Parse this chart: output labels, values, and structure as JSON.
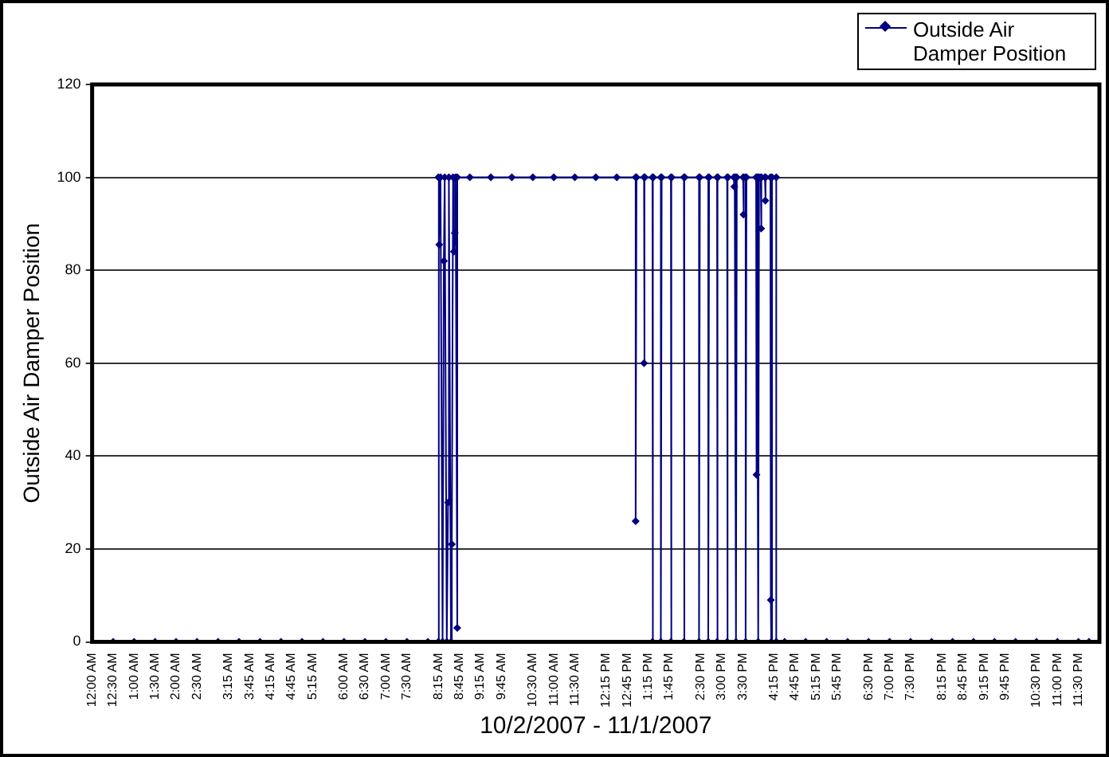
{
  "chart_data": {
    "type": "line",
    "xlabel": "10/2/2007 - 11/1/2007",
    "ylabel": "Outside Air Damper Position",
    "xlim": [
      0,
      24
    ],
    "ylim": [
      0,
      120
    ],
    "yticks": [
      0,
      20,
      40,
      60,
      80,
      100,
      120
    ],
    "xticks": [
      {
        "value": 0,
        "label": "12:00 AM"
      },
      {
        "value": 0.5,
        "label": "12:30 AM"
      },
      {
        "value": 1,
        "label": "1:00 AM"
      },
      {
        "value": 1.5,
        "label": "1:30 AM"
      },
      {
        "value": 2,
        "label": "2:00 AM"
      },
      {
        "value": 2.5,
        "label": "2:30 AM"
      },
      {
        "value": 3.25,
        "label": "3:15 AM"
      },
      {
        "value": 3.75,
        "label": "3:45 AM"
      },
      {
        "value": 4.25,
        "label": "4:15 AM"
      },
      {
        "value": 4.75,
        "label": "4:45 AM"
      },
      {
        "value": 5.25,
        "label": "5:15 AM"
      },
      {
        "value": 6,
        "label": "6:00 AM"
      },
      {
        "value": 6.5,
        "label": "6:30 AM"
      },
      {
        "value": 7,
        "label": "7:00 AM"
      },
      {
        "value": 7.5,
        "label": "7:30 AM"
      },
      {
        "value": 8.25,
        "label": "8:15 AM"
      },
      {
        "value": 8.75,
        "label": "8:45 AM"
      },
      {
        "value": 9.25,
        "label": "9:15 AM"
      },
      {
        "value": 9.75,
        "label": "9:45 AM"
      },
      {
        "value": 10.5,
        "label": "10:30 AM"
      },
      {
        "value": 11,
        "label": "11:00 AM"
      },
      {
        "value": 11.5,
        "label": "11:30 AM"
      },
      {
        "value": 12.25,
        "label": "12:15 PM"
      },
      {
        "value": 12.75,
        "label": "12:45 PM"
      },
      {
        "value": 13.25,
        "label": "1:15 PM"
      },
      {
        "value": 13.75,
        "label": "1:45 PM"
      },
      {
        "value": 14.5,
        "label": "2:30 PM"
      },
      {
        "value": 15,
        "label": "3:00 PM"
      },
      {
        "value": 15.5,
        "label": "3:30 PM"
      },
      {
        "value": 16.25,
        "label": "4:15 PM"
      },
      {
        "value": 16.75,
        "label": "4:45 PM"
      },
      {
        "value": 17.25,
        "label": "5:15 PM"
      },
      {
        "value": 17.75,
        "label": "5:45 PM"
      },
      {
        "value": 18.5,
        "label": "6:30 PM"
      },
      {
        "value": 19,
        "label": "7:00 PM"
      },
      {
        "value": 19.5,
        "label": "7:30 PM"
      },
      {
        "value": 20.25,
        "label": "8:15 PM"
      },
      {
        "value": 20.75,
        "label": "8:45 PM"
      },
      {
        "value": 21.25,
        "label": "9:15 PM"
      },
      {
        "value": 21.75,
        "label": "9:45 PM"
      },
      {
        "value": 22.5,
        "label": "10:30 PM"
      },
      {
        "value": 23,
        "label": "11:00 PM"
      },
      {
        "value": 23.5,
        "label": "11:30 PM"
      }
    ],
    "grid": "y",
    "legend": "top right",
    "marker": "diamond",
    "line_style": "solid",
    "series": [
      {
        "name": "Outside Air Damper Position",
        "color": "#000080",
        "x": [
          0,
          0.5,
          1,
          1.5,
          2,
          2.5,
          3,
          3.5,
          4,
          4.5,
          5,
          5.5,
          6,
          6.5,
          7,
          7.5,
          8,
          8.25,
          8.25,
          8.27,
          8.3,
          8.35,
          8.38,
          8.4,
          8.45,
          8.48,
          8.5,
          8.55,
          8.57,
          8.6,
          8.62,
          8.64,
          8.66,
          8.7,
          8.7,
          9,
          9.5,
          10,
          10.5,
          11,
          11.5,
          12,
          12.5,
          12.95,
          12.95,
          12.97,
          13.15,
          13.15,
          13.17,
          13.35,
          13.35,
          13.37,
          13.55,
          13.55,
          13.57,
          13.79,
          13.79,
          13.81,
          14.1,
          14.1,
          14.12,
          14.46,
          14.46,
          14.48,
          14.68,
          14.68,
          14.7,
          14.89,
          14.89,
          14.91,
          15.13,
          15.13,
          15.15,
          15.29,
          15.3,
          15.31,
          15.34,
          15.34,
          15.36,
          15.51,
          15.52,
          15.53,
          15.57,
          15.57,
          15.59,
          15.82,
          15.83,
          15.84,
          15.87,
          15.87,
          15.89,
          15.93,
          15.94,
          15.95,
          16.03,
          16.04,
          16.05,
          16.16,
          16.17,
          16.18,
          16.2,
          16.3,
          16.3,
          16.5,
          17,
          17.5,
          18,
          18.5,
          19,
          19.5,
          20,
          20.5,
          21,
          21.5,
          22,
          22.5,
          23,
          23.5,
          23.75
        ],
        "values": [
          0,
          0,
          0,
          0,
          0,
          0,
          0,
          0,
          0,
          0,
          0,
          0,
          0,
          0,
          0,
          0,
          0,
          0,
          100,
          85.5,
          100,
          0,
          82,
          100,
          0,
          30,
          100,
          0,
          21,
          100,
          84,
          88,
          100,
          3,
          100,
          100,
          100,
          100,
          100,
          100,
          100,
          100,
          100,
          100,
          26,
          100,
          100,
          60,
          100,
          100,
          0,
          100,
          100,
          0,
          100,
          100,
          0,
          100,
          100,
          0,
          100,
          100,
          0,
          100,
          100,
          0,
          100,
          100,
          0,
          100,
          100,
          0,
          100,
          100,
          98,
          100,
          100,
          0,
          100,
          100,
          92,
          100,
          100,
          0,
          100,
          100,
          36,
          100,
          100,
          0,
          100,
          100,
          89,
          100,
          100,
          95,
          100,
          100,
          9,
          0,
          100,
          100,
          0,
          0,
          0,
          0,
          0,
          0,
          0,
          0,
          0,
          0,
          0,
          0,
          0,
          0,
          0,
          0,
          0
        ]
      }
    ]
  }
}
